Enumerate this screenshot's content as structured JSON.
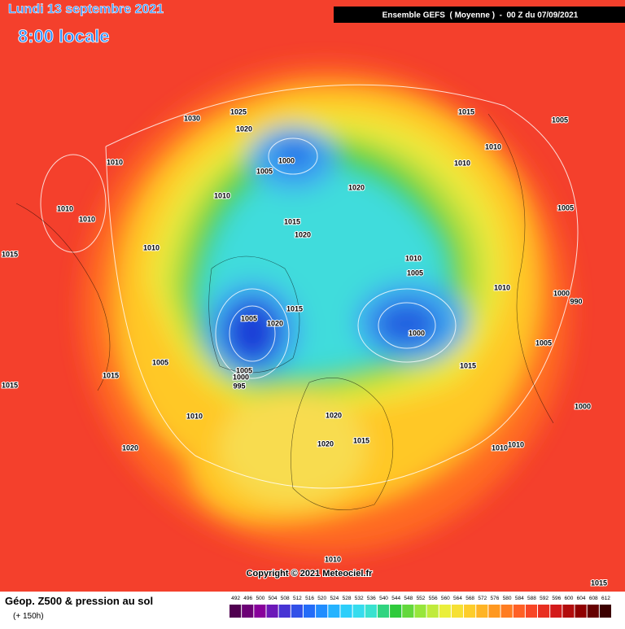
{
  "header": {
    "date": "Lundi 13 septembre 2021",
    "time": "8:00 locale",
    "model": "Ensemble GEFS  ( Moyenne )  -  00 Z du 07/09/2021"
  },
  "copyright": "Copyright © 2021 Meteociel.fr",
  "legend": {
    "title": "Géop. Z500 & pression au sol",
    "lead": "(+ 150h)",
    "scale": [
      492,
      496,
      500,
      504,
      508,
      512,
      516,
      520,
      524,
      528,
      532,
      536,
      540,
      544,
      548,
      552,
      556,
      560,
      564,
      568,
      572,
      576,
      580,
      584,
      588,
      592,
      596,
      600,
      604,
      608,
      612
    ]
  },
  "pressure_labels": [
    "1030",
    "1025",
    "1020",
    "1000",
    "1005",
    "1010",
    "1020",
    "1015",
    "1020",
    "1015",
    "1005",
    "1010",
    "1010",
    "1005",
    "1010",
    "1010",
    "1010",
    "1015",
    "1010",
    "1010",
    "1005",
    "1010",
    "1000",
    "990",
    "1005",
    "1015",
    "1020",
    "1000",
    "1005",
    "1005",
    "1015",
    "1005",
    "1000",
    "995",
    "1015",
    "1015",
    "1010",
    "1000",
    "1020",
    "1020",
    "1015",
    "1010",
    "1010",
    "1020",
    "1010",
    "1015"
  ]
}
